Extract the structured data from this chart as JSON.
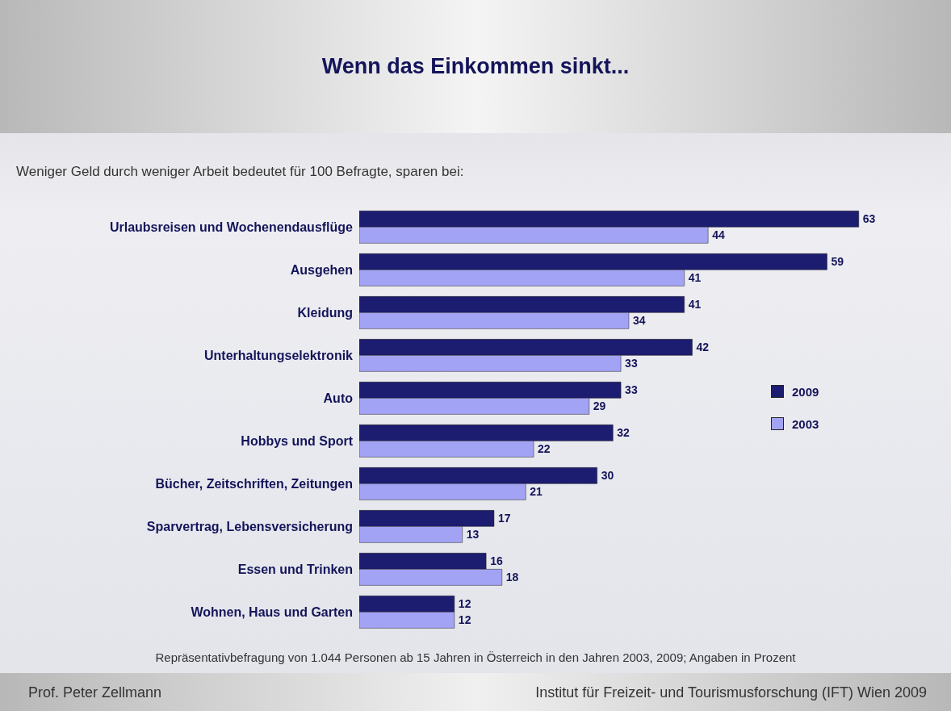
{
  "chart_data": {
    "type": "bar",
    "orientation": "horizontal",
    "title": "Wenn das Einkommen sinkt...",
    "subtitle": "Weniger Geld durch weniger Arbeit bedeutet für 100 Befragte, sparen bei:",
    "categories": [
      "Urlaubsreisen und Wochenendausflüge",
      "Ausgehen",
      "Kleidung",
      "Unterhaltungselektronik",
      "Auto",
      "Hobbys und Sport",
      "Bücher, Zeitschriften, Zeitungen",
      "Sparvertrag, Lebensversicherung",
      "Essen und Trinken",
      "Wohnen, Haus und Garten"
    ],
    "series": [
      {
        "name": "2009",
        "color": "#1c1c70",
        "values": [
          63,
          59,
          41,
          42,
          33,
          32,
          30,
          17,
          16,
          12
        ]
      },
      {
        "name": "2003",
        "color": "#a3a3f5",
        "values": [
          44,
          41,
          34,
          33,
          29,
          22,
          21,
          13,
          18,
          12
        ]
      }
    ],
    "tick_labels": "y",
    "legend": "right",
    "data_labels": true,
    "annotations": [
      "Repräsentativbefragung von 1.044 Personen ab 15 Jahren in Österreich in den Jahren 2003, 2009; Angaben in Prozent",
      "Prof. Peter Zellmann",
      "Institut für Freizeit- und Tourismusforschung (IFT) Wien 2009"
    ]
  }
}
